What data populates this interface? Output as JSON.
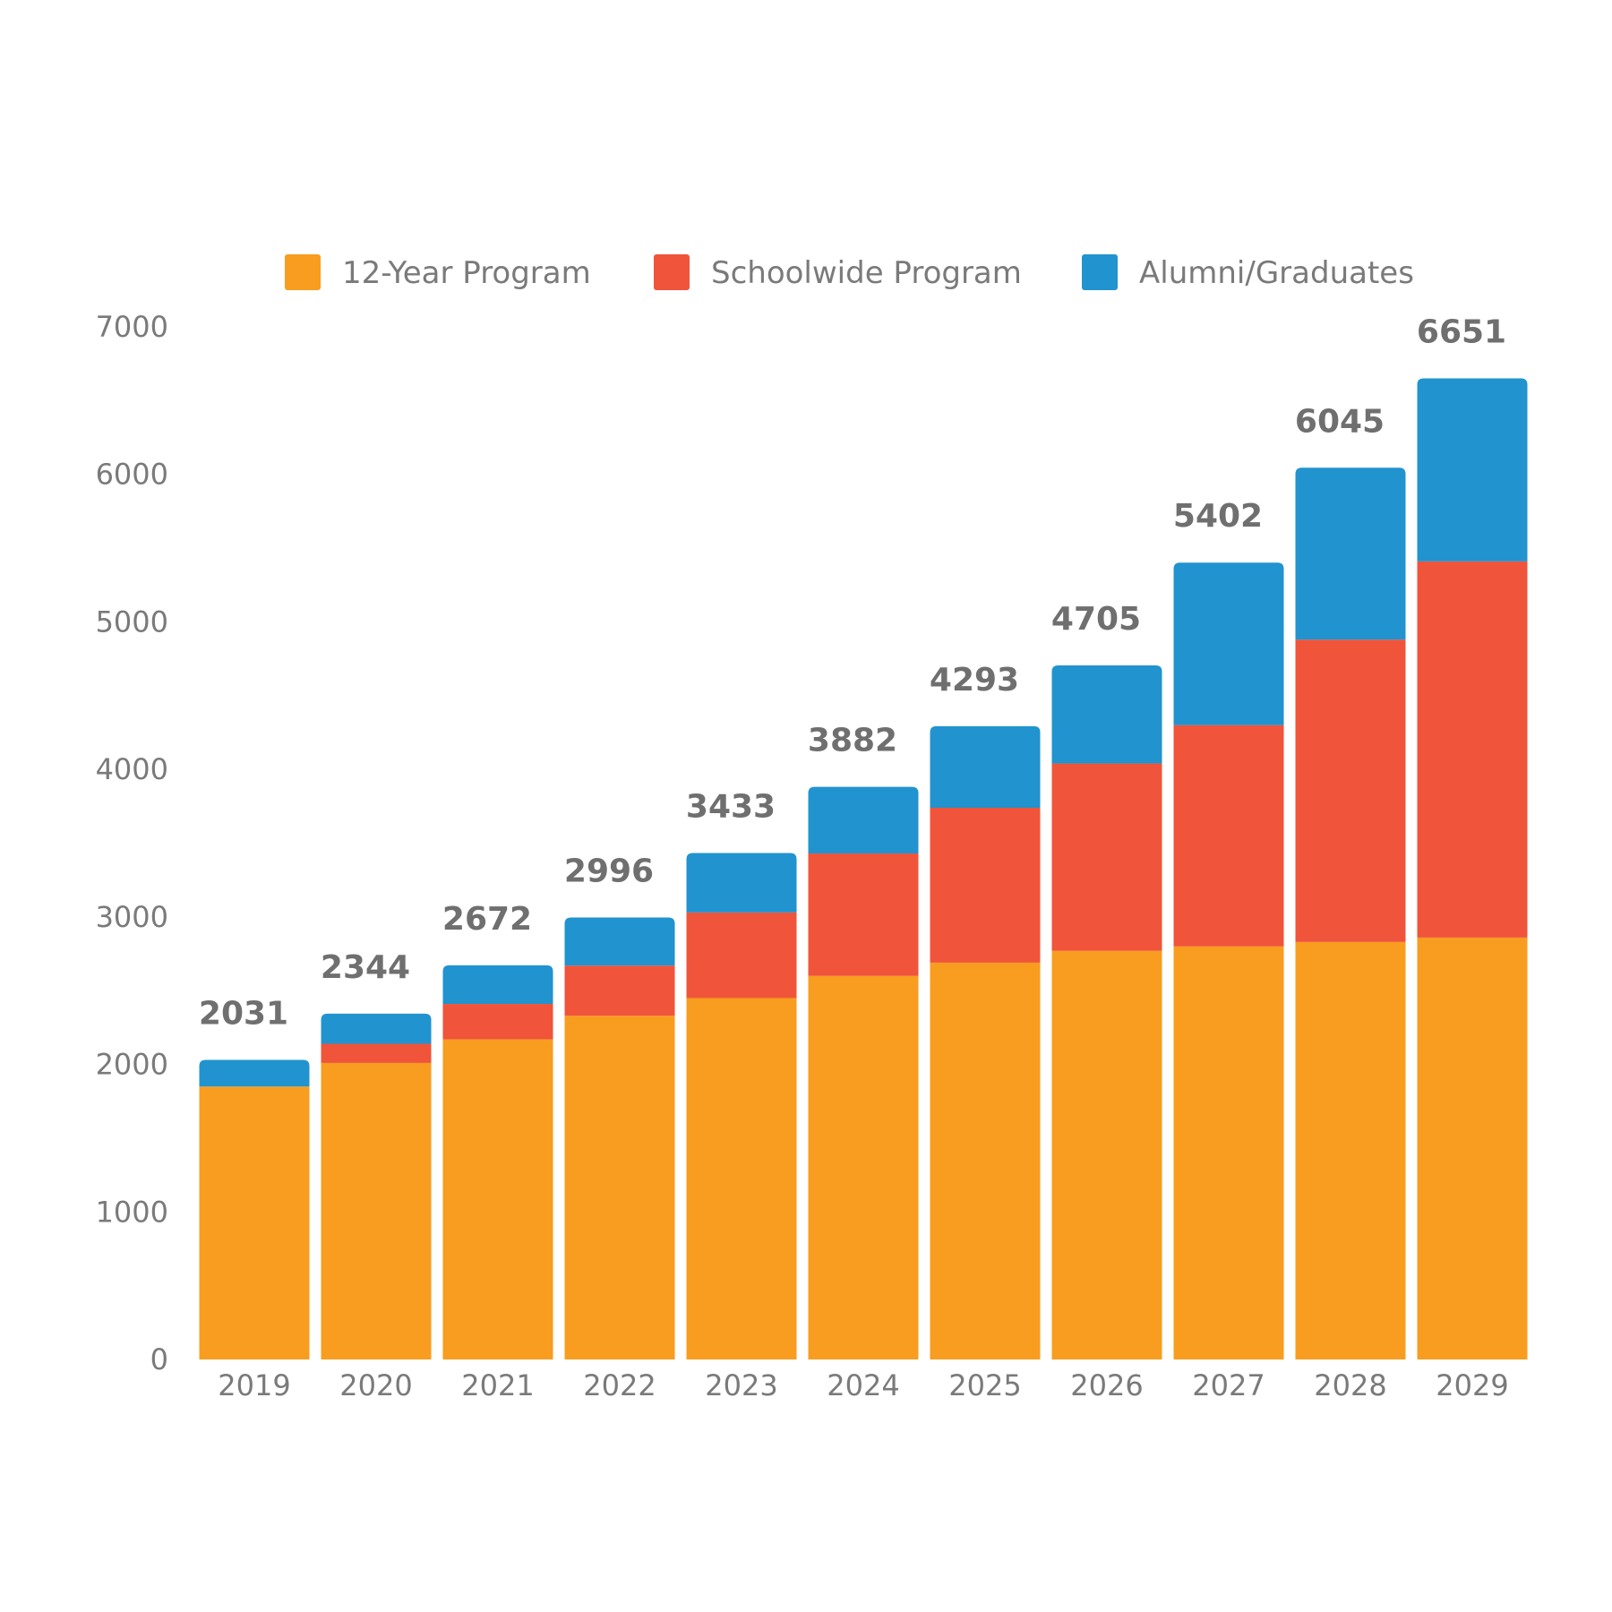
{
  "chart_data": {
    "type": "bar",
    "stacked": true,
    "title": "",
    "xlabel": "",
    "ylabel": "",
    "ylim": [
      0,
      7000
    ],
    "yticks": [
      0,
      1000,
      2000,
      3000,
      4000,
      5000,
      6000,
      7000
    ],
    "grid": false,
    "legend_position": "top-center",
    "categories": [
      "2019",
      "2020",
      "2021",
      "2022",
      "2023",
      "2024",
      "2025",
      "2026",
      "2027",
      "2028",
      "2029"
    ],
    "series": [
      {
        "name": "12-Year Program",
        "color": "#F89D1F",
        "values": [
          1850,
          2010,
          2170,
          2330,
          2450,
          2600,
          2690,
          2770,
          2800,
          2830,
          2860
        ]
      },
      {
        "name": "Schoolwide Program",
        "color": "#F0543A",
        "values": [
          0,
          130,
          240,
          340,
          580,
          830,
          1050,
          1270,
          1500,
          2050,
          2550
        ]
      },
      {
        "name": "Alumni/Graduates",
        "color": "#2193CF",
        "values": [
          181,
          204,
          262,
          326,
          403,
          452,
          553,
          665,
          1102,
          1165,
          1241
        ]
      }
    ],
    "totals": [
      "2031",
      "2344",
      "2672",
      "2996",
      "3433",
      "3882",
      "4293",
      "4705",
      "5402",
      "6045",
      "6651"
    ]
  }
}
